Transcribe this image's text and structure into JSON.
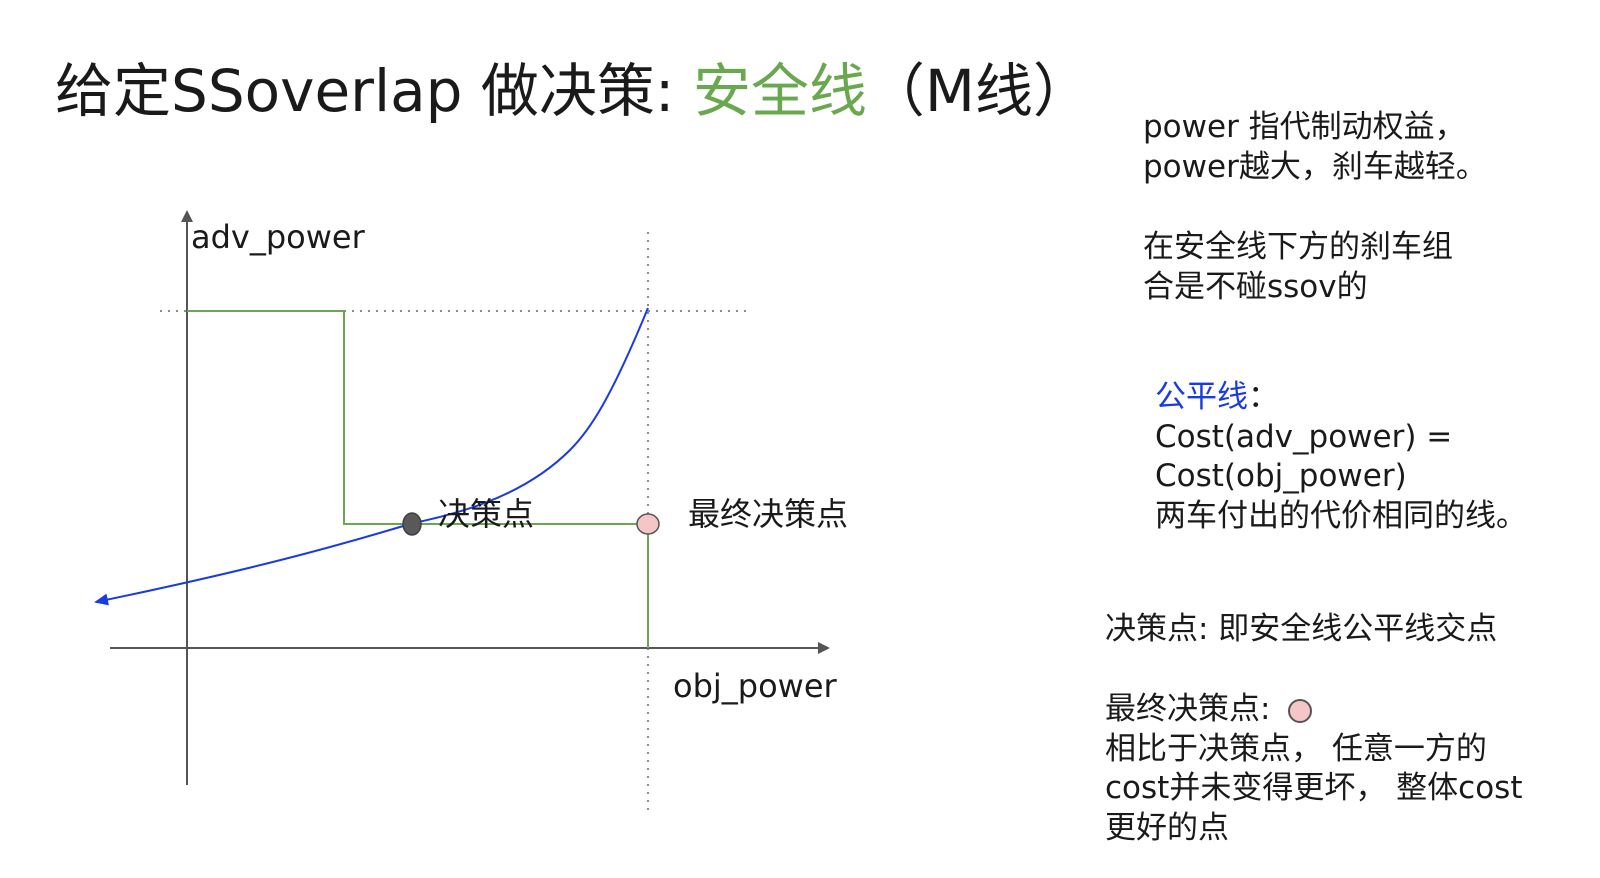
{
  "title": {
    "prefix": "给定SSoverlap 做决策: ",
    "highlight": "安全线",
    "suffix": "（M线）"
  },
  "diagram": {
    "y_axis_label": "adv_power",
    "x_axis_label": "obj_power",
    "decision_point_label": "决策点",
    "final_point_label": "最终决策点"
  },
  "colors": {
    "safety_line": "#6aa84f",
    "fair_line": "#1a3be0",
    "final_point_fill": "#f4c6c6",
    "decision_point_fill": "#595959"
  },
  "notes": {
    "power": [
      "power 指代制动权益，",
      "power越大，刹车越轻。"
    ],
    "below": [
      "在安全线下方的刹车组",
      "合是不碰ssov的"
    ],
    "fair": {
      "title": "公平线",
      "colon": "：",
      "lines": [
        "Cost(adv_power) =",
        "Cost(obj_power)",
        "两车付出的代价相同的线。"
      ]
    },
    "decision": "决策点: 即安全线公平线交点",
    "final": {
      "title": "最终决策点:",
      "lines": [
        "相比于决策点， 任意一方的",
        "cost并未变得更坏， 整体cost",
        "更好的点"
      ]
    }
  }
}
